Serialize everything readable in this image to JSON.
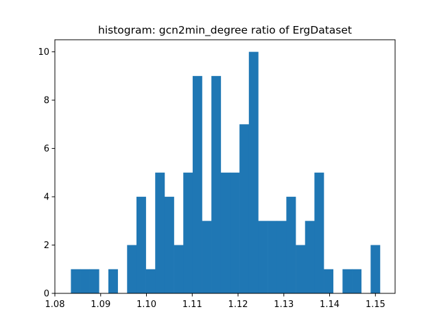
{
  "chart_data": {
    "type": "bar",
    "title": "histogram: gcn2min_degree ratio of ErgDataset",
    "xlabel": "",
    "ylabel": "",
    "xlim": [
      1.08,
      1.1543
    ],
    "ylim": [
      0,
      10.5
    ],
    "xticks": [
      1.08,
      1.09,
      1.1,
      1.11,
      1.12,
      1.13,
      1.14,
      1.15
    ],
    "xtick_labels": [
      "1.08",
      "1.09",
      "1.10",
      "1.11",
      "1.12",
      "1.13",
      "1.14",
      "1.15"
    ],
    "yticks": [
      0,
      2,
      4,
      6,
      8,
      10
    ],
    "ytick_labels": [
      "0",
      "2",
      "4",
      "6",
      "8",
      "10"
    ],
    "bin_start": 1.0835,
    "bin_end": 1.151,
    "bin_count": 33,
    "values": [
      1,
      1,
      1,
      0,
      1,
      0,
      2,
      4,
      1,
      5,
      4,
      2,
      5,
      9,
      3,
      9,
      5,
      5,
      7,
      10,
      3,
      3,
      3,
      4,
      2,
      3,
      5,
      1,
      0,
      1,
      1,
      0,
      2
    ],
    "grid": false,
    "legend": "none",
    "bar_color": "#1f77b4"
  }
}
